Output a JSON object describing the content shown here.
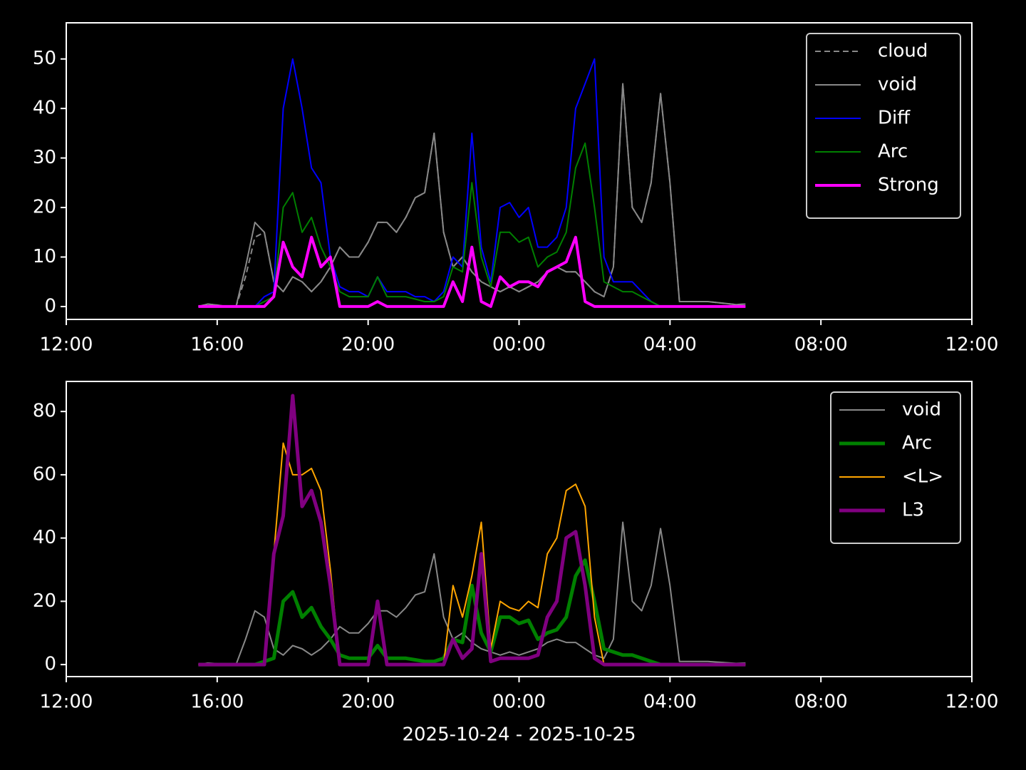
{
  "chart_data": [
    {
      "type": "line",
      "xlim": [
        0,
        24
      ],
      "ylim": [
        -2.6,
        57.3
      ],
      "yticks": [
        0,
        10,
        20,
        30,
        40,
        50
      ],
      "xticks": [
        {
          "value": 0,
          "label": "12:00"
        },
        {
          "value": 4,
          "label": "16:00"
        },
        {
          "value": 8,
          "label": "20:00"
        },
        {
          "value": 12,
          "label": "00:00"
        },
        {
          "value": 16,
          "label": "04:00"
        },
        {
          "value": 20,
          "label": "08:00"
        },
        {
          "value": 24,
          "label": "12:00"
        }
      ],
      "legend": "upper right",
      "x": [
        3.5,
        3.75,
        4,
        4.25,
        4.5,
        4.75,
        5,
        5.25,
        5.5,
        5.75,
        6,
        6.25,
        6.5,
        6.75,
        7,
        7.25,
        7.5,
        7.75,
        8,
        8.25,
        8.5,
        8.75,
        9,
        9.25,
        9.5,
        9.75,
        10,
        10.25,
        10.5,
        10.75,
        11,
        11.25,
        11.5,
        11.75,
        12,
        12.25,
        12.5,
        12.75,
        13,
        13.25,
        13.5,
        13.75,
        14,
        14.25,
        14.5,
        14.75,
        15,
        15.25,
        15.5,
        15.75,
        16,
        16.25,
        16.5,
        16.75,
        17,
        17.25,
        17.5,
        17.75,
        18
      ],
      "series": [
        {
          "name": "cloud",
          "color": "#888888",
          "width": 2,
          "dash": "8,5",
          "values": [
            0,
            0.5,
            0.3,
            0,
            0,
            6,
            14,
            15,
            5,
            3,
            6,
            5,
            3,
            5,
            8,
            12,
            10,
            10,
            13,
            17,
            17,
            15,
            18,
            22,
            23,
            35,
            15,
            8,
            10,
            7,
            5,
            4,
            3,
            4,
            3,
            4,
            5,
            7,
            8,
            7,
            7,
            5,
            3,
            2,
            8,
            45,
            20,
            17,
            25,
            43,
            25,
            1,
            1,
            1,
            1,
            0.8,
            0.6,
            0.4,
            0.5
          ]
        },
        {
          "name": "void",
          "color": "#888888",
          "width": 2,
          "values": [
            0,
            0.5,
            0.3,
            0,
            0,
            8,
            17,
            15,
            5,
            3,
            6,
            5,
            3,
            5,
            8,
            12,
            10,
            10,
            13,
            17,
            17,
            15,
            18,
            22,
            23,
            35,
            15,
            8,
            10,
            7,
            5,
            4,
            3,
            4,
            3,
            4,
            5,
            7,
            8,
            7,
            7,
            5,
            3,
            2,
            8,
            45,
            20,
            17,
            25,
            43,
            25,
            1,
            1,
            1,
            1,
            0.8,
            0.6,
            0.4,
            0.5
          ]
        },
        {
          "name": "Diff",
          "color": "#0000ff",
          "width": 2,
          "values": [
            0,
            0,
            0,
            0,
            0,
            0,
            0,
            2,
            3,
            40,
            50,
            40,
            28,
            25,
            10,
            4,
            3,
            3,
            2,
            6,
            3,
            3,
            3,
            2,
            2,
            1,
            3,
            10,
            8,
            35,
            12,
            5,
            20,
            21,
            18,
            20,
            12,
            12,
            14,
            20,
            40,
            45,
            50,
            10,
            5,
            5,
            5,
            3,
            1,
            0,
            0,
            0,
            0,
            0,
            0,
            0,
            0,
            0,
            0
          ]
        },
        {
          "name": "Arc",
          "color": "#008000",
          "width": 2,
          "values": [
            0,
            0,
            0,
            0,
            0,
            0,
            0,
            1,
            2,
            20,
            23,
            15,
            18,
            12,
            8,
            3,
            2,
            2,
            2,
            6,
            2,
            2,
            2,
            1.5,
            1,
            1,
            2,
            8,
            7,
            25,
            10,
            4,
            15,
            15,
            13,
            14,
            8,
            10,
            11,
            15,
            28,
            33,
            20,
            5,
            4,
            3,
            3,
            2,
            1,
            0,
            0,
            0,
            0,
            0,
            0,
            0,
            0,
            0,
            0
          ]
        },
        {
          "name": "Strong",
          "color": "#ff00ff",
          "width": 4,
          "values": [
            0,
            0,
            0,
            0,
            0,
            0,
            0,
            0,
            2,
            13,
            8,
            6,
            14,
            8,
            10,
            0,
            0,
            0,
            0,
            1,
            0,
            0,
            0,
            0,
            0,
            0,
            0,
            5,
            1,
            12,
            1,
            0,
            6,
            4,
            5,
            5,
            4,
            7,
            8,
            9,
            14,
            1,
            0,
            0,
            0,
            0,
            0,
            0,
            0,
            0,
            0,
            0,
            0,
            0,
            0,
            0,
            0,
            0,
            0
          ]
        }
      ]
    },
    {
      "type": "line",
      "xlim": [
        0,
        24
      ],
      "ylim": [
        -3.8,
        89.5
      ],
      "yticks": [
        0,
        20,
        40,
        60,
        80
      ],
      "xticks": [
        {
          "value": 0,
          "label": "12:00"
        },
        {
          "value": 4,
          "label": "16:00"
        },
        {
          "value": 8,
          "label": "20:00"
        },
        {
          "value": 12,
          "label": "00:00"
        },
        {
          "value": 16,
          "label": "04:00"
        },
        {
          "value": 20,
          "label": "08:00"
        },
        {
          "value": 24,
          "label": "12:00"
        }
      ],
      "xlabel": "2025-10-24 - 2025-10-25",
      "legend": "upper right",
      "x": [
        3.5,
        3.75,
        4,
        4.25,
        4.5,
        4.75,
        5,
        5.25,
        5.5,
        5.75,
        6,
        6.25,
        6.5,
        6.75,
        7,
        7.25,
        7.5,
        7.75,
        8,
        8.25,
        8.5,
        8.75,
        9,
        9.25,
        9.5,
        9.75,
        10,
        10.25,
        10.5,
        10.75,
        11,
        11.25,
        11.5,
        11.75,
        12,
        12.25,
        12.5,
        12.75,
        13,
        13.25,
        13.5,
        13.75,
        14,
        14.25,
        14.5,
        14.75,
        15,
        15.25,
        15.5,
        15.75,
        16,
        16.25,
        16.5,
        16.75,
        17,
        17.25,
        17.5,
        17.75,
        18
      ],
      "series": [
        {
          "name": "void",
          "color": "#888888",
          "width": 2,
          "values": [
            0,
            0.5,
            0.3,
            0,
            0,
            8,
            17,
            15,
            5,
            3,
            6,
            5,
            3,
            5,
            8,
            12,
            10,
            10,
            13,
            17,
            17,
            15,
            18,
            22,
            23,
            35,
            15,
            8,
            10,
            7,
            5,
            4,
            3,
            4,
            3,
            4,
            5,
            7,
            8,
            7,
            7,
            5,
            3,
            2,
            8,
            45,
            20,
            17,
            25,
            43,
            25,
            1,
            1,
            1,
            1,
            0.8,
            0.6,
            0.4,
            0.5
          ]
        },
        {
          "name": "Arc",
          "color": "#008000",
          "width": 5,
          "values": [
            0,
            0,
            0,
            0,
            0,
            0,
            0,
            1,
            2,
            20,
            23,
            15,
            18,
            12,
            8,
            3,
            2,
            2,
            2,
            6,
            2,
            2,
            2,
            1.5,
            1,
            1,
            2,
            8,
            7,
            25,
            10,
            4,
            15,
            15,
            13,
            14,
            8,
            10,
            11,
            15,
            28,
            33,
            20,
            5,
            4,
            3,
            3,
            2,
            1,
            0,
            0,
            0,
            0,
            0,
            0,
            0,
            0,
            0,
            0
          ]
        },
        {
          "name": "<L>",
          "color": "#ffa500",
          "width": 2,
          "values": [
            0,
            0,
            0,
            0,
            0,
            0,
            0,
            0,
            35,
            70,
            60,
            60,
            62,
            55,
            30,
            0,
            0,
            0,
            0,
            20,
            0,
            0,
            0,
            0,
            0,
            0,
            0,
            25,
            15,
            28,
            45,
            5,
            20,
            18,
            17,
            20,
            18,
            35,
            40,
            55,
            57,
            50,
            15,
            0,
            0,
            0,
            0,
            0,
            0,
            0,
            0,
            0,
            0,
            0,
            0,
            0,
            0,
            0,
            0
          ]
        },
        {
          "name": "L3",
          "color": "#800080",
          "width": 5,
          "values": [
            0,
            0,
            0,
            0,
            0,
            0,
            0,
            0,
            35,
            47,
            85,
            50,
            55,
            45,
            25,
            0,
            0,
            0,
            0,
            20,
            0,
            0,
            0,
            0,
            0,
            0,
            0,
            8,
            2,
            5,
            35,
            1,
            2,
            2,
            2,
            2,
            3,
            15,
            20,
            40,
            42,
            25,
            2,
            0,
            0,
            0,
            0,
            0,
            0,
            0,
            0,
            0,
            0,
            0,
            0,
            0,
            0,
            0,
            0
          ]
        }
      ]
    }
  ]
}
